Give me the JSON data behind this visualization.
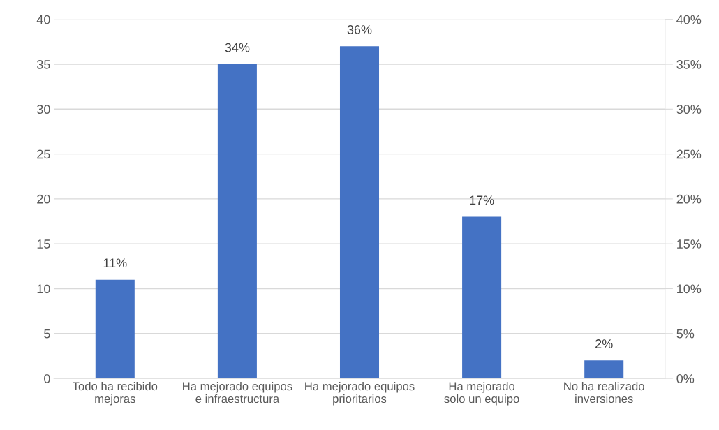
{
  "chart_data": {
    "type": "bar",
    "categories": [
      "Todo ha recibido mejoras",
      "Ha mejorado equipos e infraestructura",
      "Ha mejorado equipos prioritarios",
      "Ha mejorado solo un equipo",
      "No ha realizado inversiones"
    ],
    "values": [
      11,
      35,
      37,
      18,
      2
    ],
    "annotations": [
      {
        "text": "11%",
        "x": "Todo ha recibido mejoras",
        "y": 11
      },
      {
        "text": "34%",
        "x": "Ha mejorado equipos e infraestructura",
        "y": 35
      },
      {
        "text": "36%",
        "x": "Ha mejorado equipos prioritarios",
        "y": 37
      },
      {
        "text": "17%",
        "x": "Ha mejorado solo un equipo",
        "y": 18
      },
      {
        "text": "2%",
        "x": "No ha realizado inversiones",
        "y": 2
      }
    ],
    "color": "#4472c4",
    "ylim": [
      0,
      40
    ],
    "yticks": [
      0,
      5,
      10,
      15,
      20,
      25,
      30,
      35,
      40
    ],
    "y2lim": [
      0,
      40
    ],
    "y2ticks": [
      {
        "value": 0,
        "label": "0%"
      },
      {
        "value": 5,
        "label": "5%"
      },
      {
        "value": 10,
        "label": "10%"
      },
      {
        "value": 15,
        "label": "15%"
      },
      {
        "value": 20,
        "label": "20%"
      },
      {
        "value": 25,
        "label": "25%"
      },
      {
        "value": 30,
        "label": "30%"
      },
      {
        "value": 35,
        "label": "35%"
      },
      {
        "value": 40,
        "label": "40%"
      }
    ],
    "grid": "y"
  }
}
